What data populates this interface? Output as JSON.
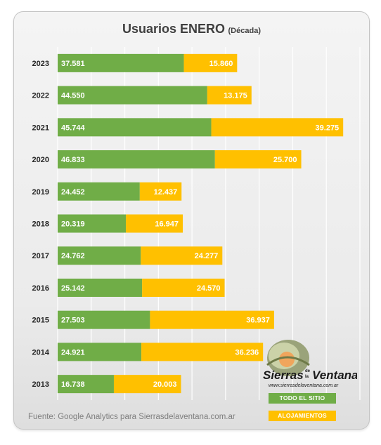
{
  "chart_data": {
    "type": "bar",
    "orientation": "horizontal",
    "stacked": true,
    "title": "Usuarios ENERO",
    "subtitle": "(Década)",
    "categories": [
      "2023",
      "2022",
      "2021",
      "2020",
      "2019",
      "2018",
      "2017",
      "2016",
      "2015",
      "2014",
      "2013"
    ],
    "series": [
      {
        "name": "TODO EL SITIO",
        "color": "#70ad47",
        "values": [
          37581,
          44550,
          45744,
          46833,
          24452,
          20319,
          24762,
          25142,
          27503,
          24921,
          16738
        ],
        "labels": [
          "37.581",
          "44.550",
          "45.744",
          "46.833",
          "24.452",
          "20.319",
          "24.762",
          "25.142",
          "27.503",
          "24.921",
          "16.738"
        ]
      },
      {
        "name": "ALOJAMIENTOS",
        "color": "#ffc000",
        "values": [
          15860,
          13175,
          39275,
          25700,
          12437,
          16947,
          24277,
          24570,
          36937,
          36236,
          20003
        ],
        "labels": [
          "15.860",
          "13.175",
          "39.275",
          "25.700",
          "12.437",
          "16.947",
          "24.277",
          "24.570",
          "36.937",
          "36.236",
          "20.003"
        ]
      }
    ],
    "xlim": [
      0,
      90000
    ],
    "grid": true,
    "legend": "bottom-right"
  },
  "footer": "Fuente: Google Analytics para Sierrasdelaventana.com.ar",
  "logo": {
    "brand": "Sierras de la Ventana",
    "url": "www.sierrasdelaventana.com.ar"
  }
}
